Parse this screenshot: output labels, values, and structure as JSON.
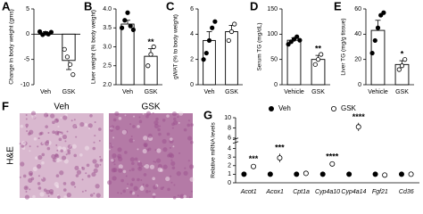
{
  "chart_data": [
    {
      "type": "bar",
      "panel": "A",
      "ylabel": "Change in body weight (gms)",
      "categories": [
        "Veh",
        "GSK"
      ],
      "values": [
        0.2,
        -5.2
      ],
      "errors": [
        0.3,
        1.8
      ],
      "points": [
        [
          0.5,
          -0.1,
          0.2,
          0,
          0.4
        ],
        [
          -3,
          -4.5,
          -6,
          -8
        ]
      ],
      "marker_fill": [
        "#000000",
        "#ffffff"
      ],
      "bar_fill": "#ffffff",
      "ylim": [
        -10,
        5
      ],
      "yticks": [
        -10,
        -5,
        0,
        5
      ]
    },
    {
      "type": "bar",
      "panel": "B",
      "ylabel": "Liver weight (% body weight)",
      "categories": [
        "Veh",
        "GSK"
      ],
      "values": [
        3.6,
        2.75
      ],
      "errors": [
        0.1,
        0.2
      ],
      "points": [
        [
          3.5,
          3.7,
          3.9,
          3.55,
          3.45
        ],
        [
          2.5,
          2.8,
          3.0
        ]
      ],
      "marker_fill": [
        "#000000",
        "#ffffff"
      ],
      "bar_fill": "#ffffff",
      "annotations": [
        null,
        "**"
      ],
      "ylim": [
        2.0,
        4.0
      ],
      "yticks": [
        {
          "value": 2,
          "label": "2.0"
        },
        2.5,
        {
          "value": 3,
          "label": "3.0"
        },
        3.5,
        {
          "value": 4,
          "label": "4.0"
        }
      ]
    },
    {
      "type": "bar",
      "panel": "C",
      "ylabel": "gWAT (% to body weight)",
      "categories": [
        "Veh",
        "GSK"
      ],
      "values": [
        3.5,
        4.2
      ],
      "errors": [
        0.7,
        0.5
      ],
      "points": [
        [
          2,
          2.5,
          3.5,
          4.5,
          5
        ],
        [
          3.5,
          4.2,
          4.8
        ]
      ],
      "marker_fill": [
        "#000000",
        "#ffffff"
      ],
      "bar_fill": "#ffffff",
      "ylim": [
        0,
        6
      ],
      "yticks": [
        0,
        2,
        4,
        6
      ]
    },
    {
      "type": "bar",
      "panel": "D",
      "ylabel": "Serum TG (mg/dL)",
      "categories": [
        "Vehicle",
        "GSK"
      ],
      "values": [
        88,
        50
      ],
      "errors": [
        5,
        8
      ],
      "points": [
        [
          80,
          85,
          90,
          95,
          88
        ],
        [
          40,
          50,
          60
        ]
      ],
      "marker_fill": [
        "#000000",
        "#ffffff"
      ],
      "bar_fill": "#ffffff",
      "annotations": [
        null,
        "**"
      ],
      "ylim": [
        0,
        150
      ],
      "yticks": [
        0,
        50,
        100,
        150
      ]
    },
    {
      "type": "bar",
      "panel": "E",
      "ylabel": "Liver TG (mg/g tissue)",
      "categories": [
        "Vehicle",
        "GSK"
      ],
      "values": [
        43,
        16
      ],
      "errors": [
        8,
        3
      ],
      "points": [
        [
          25,
          35,
          45,
          55,
          57
        ],
        [
          12,
          15,
          20
        ]
      ],
      "marker_fill": [
        "#000000",
        "#ffffff"
      ],
      "bar_fill": "#ffffff",
      "annotations": [
        null,
        "*"
      ],
      "ylim": [
        0,
        60
      ],
      "yticks": [
        0,
        20,
        40,
        60
      ]
    },
    {
      "type": "image",
      "panel": "F",
      "ylabel": "H&E",
      "categories": [
        "Veh",
        "GSK"
      ],
      "colors": [
        "#d9b8cf",
        "#b47aa6"
      ]
    },
    {
      "type": "dot",
      "panel": "G",
      "ylabel": "Relative mRNA levels",
      "categories": [
        "Acot1",
        "Acox1",
        "Cpt1a",
        "Cyp4a10",
        "Cyp4a14",
        "Fgf21",
        "Cd36"
      ],
      "series": [
        {
          "name": "Veh",
          "color": "#000000",
          "values": [
            1,
            1,
            1,
            1,
            1,
            1,
            1
          ],
          "errors": [
            0.15,
            0.15,
            0.15,
            0.15,
            0.15,
            0.15,
            0.15
          ]
        },
        {
          "name": "GSK",
          "color": "#ffffff",
          "values": [
            1.9,
            2.9,
            1.1,
            2.2,
            8.2,
            0.9,
            1.0
          ],
          "errors": [
            0.2,
            0.5,
            0.3,
            0.2,
            0.8,
            0.15,
            0.2
          ]
        }
      ],
      "annotations": [
        "***",
        "***",
        null,
        "****",
        "****",
        null,
        null
      ],
      "ylim": [
        0,
        10
      ],
      "axis_break": [
        4.5,
        5.5
      ],
      "yticks": [
        0,
        1,
        2,
        3,
        4,
        6,
        8,
        10
      ]
    }
  ]
}
